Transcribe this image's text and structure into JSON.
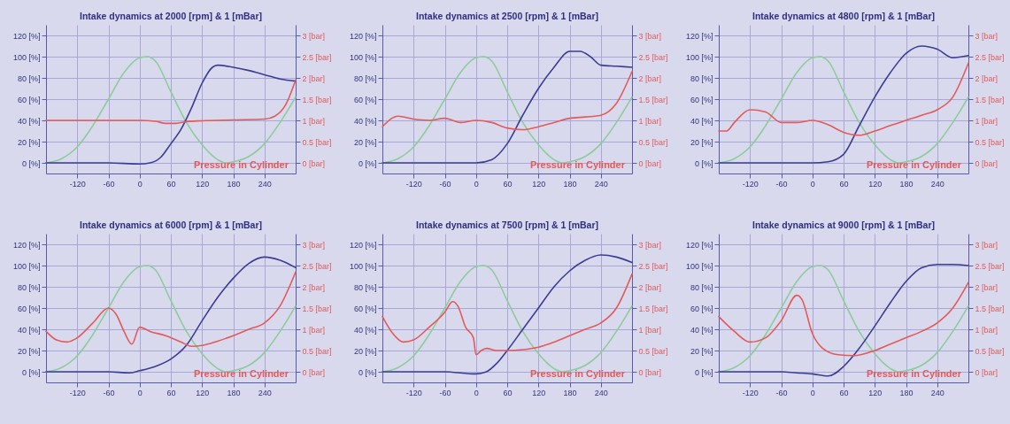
{
  "chart_data": [
    {
      "type": "line",
      "title": "Intake dynamics at 2000 [rpm] & 1 [mBar]",
      "xlim": [
        -180,
        300
      ],
      "xticks": [
        -120,
        -60,
        0,
        60,
        120,
        180,
        240
      ],
      "ylim": [
        -10,
        130
      ],
      "yticks": [
        {
          "value": 0,
          "label": "0 [%]"
        },
        {
          "value": 20,
          "label": "20 [%]"
        },
        {
          "value": 40,
          "label": "40 [%]"
        },
        {
          "value": 60,
          "label": "60 [%]"
        },
        {
          "value": 80,
          "label": "80 [%]"
        },
        {
          "value": 100,
          "label": "100 [%]"
        },
        {
          "value": 120,
          "label": "120 [%]"
        }
      ],
      "y2lim": [
        -0.25,
        3.25
      ],
      "y2ticks": [
        {
          "value": 0,
          "label": "0 [bar]"
        },
        {
          "value": 0.5,
          "label": "0.5 [bar]"
        },
        {
          "value": 1,
          "label": "1 [bar]"
        },
        {
          "value": 1.5,
          "label": "1.5 [bar]"
        },
        {
          "value": 2,
          "label": "2 [bar]"
        },
        {
          "value": 2.5,
          "label": "2.5 [bar]"
        },
        {
          "value": 3,
          "label": "3 [bar]"
        }
      ],
      "grid": true,
      "line_style": "solid",
      "series": [
        {
          "color": "#8ccc9a",
          "x": [
            -180,
            -150,
            -120,
            -90,
            -60,
            -30,
            0,
            15,
            30,
            60,
            90,
            120,
            150,
            165,
            180,
            210,
            240,
            270,
            300
          ],
          "values": [
            0,
            4,
            15,
            35,
            60,
            85,
            99,
            100,
            96,
            67,
            38,
            17,
            3,
            0,
            1,
            6,
            18,
            38,
            62
          ]
        },
        {
          "color": "#3c3c96",
          "x": [
            -180,
            -60,
            0,
            20,
            40,
            60,
            80,
            100,
            120,
            140,
            150,
            180,
            210,
            240,
            270,
            300
          ],
          "values": [
            0,
            0,
            -1,
            0,
            5,
            18,
            32,
            52,
            75,
            90,
            92,
            90,
            87,
            83,
            79,
            77
          ]
        },
        {
          "name": "Pressure in Cylinder",
          "color": "#e25a5a",
          "axis": "y2",
          "x": [
            -180,
            0,
            30,
            50,
            70,
            90,
            120,
            180,
            240,
            260,
            280,
            300
          ],
          "values": [
            1.0,
            1.0,
            0.98,
            0.93,
            0.93,
            0.97,
            0.99,
            1.01,
            1.03,
            1.1,
            1.35,
            1.95
          ]
        }
      ]
    },
    {
      "type": "line",
      "title": "Intake dynamics at 2500 [rpm] & 1 [mBar]",
      "xlim": [
        -180,
        300
      ],
      "xticks": [
        -120,
        -60,
        0,
        60,
        120,
        180,
        240
      ],
      "ylim": [
        -10,
        130
      ],
      "yticks": [
        {
          "value": 0,
          "label": "0 [%]"
        },
        {
          "value": 20,
          "label": "20 [%]"
        },
        {
          "value": 40,
          "label": "40 [%]"
        },
        {
          "value": 60,
          "label": "60 [%]"
        },
        {
          "value": 80,
          "label": "80 [%]"
        },
        {
          "value": 100,
          "label": "100 [%]"
        },
        {
          "value": 120,
          "label": "120 [%]"
        }
      ],
      "y2lim": [
        -0.25,
        3.25
      ],
      "y2ticks": [
        {
          "value": 0,
          "label": "0 [bar]"
        },
        {
          "value": 0.5,
          "label": "0.5 [bar]"
        },
        {
          "value": 1,
          "label": "1 [bar]"
        },
        {
          "value": 1.5,
          "label": "1.5 [bar]"
        },
        {
          "value": 2,
          "label": "2 [bar]"
        },
        {
          "value": 2.5,
          "label": "2.5 [bar]"
        },
        {
          "value": 3,
          "label": "3 [bar]"
        }
      ],
      "grid": true,
      "line_style": "solid",
      "series": [
        {
          "color": "#8ccc9a",
          "x": [
            -180,
            -150,
            -120,
            -90,
            -60,
            -30,
            0,
            15,
            30,
            60,
            90,
            120,
            150,
            165,
            180,
            210,
            240,
            270,
            300
          ],
          "values": [
            0,
            4,
            15,
            35,
            60,
            85,
            99,
            100,
            96,
            67,
            38,
            17,
            3,
            0,
            1,
            6,
            18,
            38,
            62
          ]
        },
        {
          "color": "#3c3c96",
          "x": [
            -180,
            -60,
            0,
            30,
            60,
            90,
            120,
            150,
            180,
            200,
            220,
            240,
            270,
            300
          ],
          "values": [
            0,
            0,
            0,
            3,
            18,
            45,
            70,
            90,
            105,
            105,
            100,
            92,
            91,
            90
          ]
        },
        {
          "name": "Pressure in Cylinder",
          "color": "#e25a5a",
          "axis": "y2",
          "x": [
            -180,
            -150,
            -120,
            -90,
            -60,
            -30,
            0,
            30,
            60,
            90,
            120,
            150,
            180,
            210,
            240,
            270,
            300
          ],
          "values": [
            0.85,
            1.1,
            1.03,
            1.0,
            1.05,
            0.95,
            1.0,
            0.95,
            0.82,
            0.78,
            0.85,
            0.95,
            1.05,
            1.08,
            1.12,
            1.4,
            2.15
          ]
        }
      ]
    },
    {
      "type": "line",
      "title": "Intake dynamics at 4800 [rpm] & 1 [mBar]",
      "xlim": [
        -180,
        300
      ],
      "xticks": [
        -120,
        -60,
        0,
        60,
        120,
        180,
        240
      ],
      "ylim": [
        -10,
        130
      ],
      "yticks": [
        {
          "value": 0,
          "label": "0 [%]"
        },
        {
          "value": 20,
          "label": "20 [%]"
        },
        {
          "value": 40,
          "label": "40 [%]"
        },
        {
          "value": 60,
          "label": "60 [%]"
        },
        {
          "value": 80,
          "label": "80 [%]"
        },
        {
          "value": 100,
          "label": "100 [%]"
        },
        {
          "value": 120,
          "label": "120 [%]"
        }
      ],
      "y2lim": [
        -0.25,
        3.25
      ],
      "y2ticks": [
        {
          "value": 0,
          "label": "0 [bar]"
        },
        {
          "value": 0.5,
          "label": "0.5 [bar]"
        },
        {
          "value": 1,
          "label": "1 [bar]"
        },
        {
          "value": 1.5,
          "label": "1.5 [bar]"
        },
        {
          "value": 2,
          "label": "2 [bar]"
        },
        {
          "value": 2.5,
          "label": "2.5 [bar]"
        },
        {
          "value": 3,
          "label": "3 [bar]"
        }
      ],
      "grid": true,
      "line_style": "solid",
      "series": [
        {
          "color": "#8ccc9a",
          "x": [
            -180,
            -150,
            -120,
            -90,
            -60,
            -30,
            0,
            15,
            30,
            60,
            90,
            120,
            150,
            165,
            180,
            210,
            240,
            270,
            300
          ],
          "values": [
            0,
            4,
            15,
            35,
            60,
            85,
            99,
            100,
            96,
            67,
            38,
            17,
            3,
            0,
            1,
            6,
            18,
            38,
            62
          ]
        },
        {
          "color": "#3c3c96",
          "x": [
            -180,
            -60,
            0,
            30,
            60,
            90,
            120,
            150,
            180,
            210,
            240,
            270,
            300
          ],
          "values": [
            0,
            0,
            0,
            1,
            8,
            35,
            62,
            85,
            103,
            110,
            107,
            99,
            101
          ]
        },
        {
          "name": "Pressure in Cylinder",
          "color": "#e25a5a",
          "axis": "y2",
          "x": [
            -180,
            -165,
            -150,
            -120,
            -90,
            -60,
            -30,
            0,
            30,
            60,
            90,
            120,
            150,
            180,
            210,
            240,
            270,
            300
          ],
          "values": [
            0.75,
            0.75,
            0.95,
            1.25,
            1.2,
            0.95,
            0.95,
            1.0,
            0.9,
            0.72,
            0.65,
            0.75,
            0.88,
            1.0,
            1.12,
            1.25,
            1.55,
            2.35
          ]
        }
      ]
    },
    {
      "type": "line",
      "title": "Intake dynamics at 6000 [rpm] & 1 [mBar]",
      "xlim": [
        -180,
        300
      ],
      "xticks": [
        -120,
        -60,
        0,
        60,
        120,
        180,
        240
      ],
      "ylim": [
        -10,
        130
      ],
      "yticks": [
        {
          "value": 0,
          "label": "0 [%]"
        },
        {
          "value": 20,
          "label": "20 [%]"
        },
        {
          "value": 40,
          "label": "40 [%]"
        },
        {
          "value": 60,
          "label": "60 [%]"
        },
        {
          "value": 80,
          "label": "80 [%]"
        },
        {
          "value": 100,
          "label": "100 [%]"
        },
        {
          "value": 120,
          "label": "120 [%]"
        }
      ],
      "y2lim": [
        -0.25,
        3.25
      ],
      "y2ticks": [
        {
          "value": 0,
          "label": "0 [bar]"
        },
        {
          "value": 0.5,
          "label": "0.5 [bar]"
        },
        {
          "value": 1,
          "label": "1 [bar]"
        },
        {
          "value": 1.5,
          "label": "1.5 [bar]"
        },
        {
          "value": 2,
          "label": "2 [bar]"
        },
        {
          "value": 2.5,
          "label": "2.5 [bar]"
        },
        {
          "value": 3,
          "label": "3 [bar]"
        }
      ],
      "grid": true,
      "line_style": "solid",
      "series": [
        {
          "color": "#8ccc9a",
          "x": [
            -180,
            -150,
            -120,
            -90,
            -60,
            -30,
            0,
            15,
            30,
            60,
            90,
            120,
            150,
            165,
            180,
            210,
            240,
            270,
            300
          ],
          "values": [
            0,
            4,
            15,
            35,
            60,
            85,
            99,
            100,
            96,
            67,
            38,
            17,
            3,
            0,
            1,
            6,
            18,
            38,
            62
          ]
        },
        {
          "color": "#3c3c96",
          "x": [
            -180,
            -60,
            -20,
            0,
            30,
            60,
            90,
            120,
            150,
            180,
            210,
            240,
            270,
            300
          ],
          "values": [
            0,
            0,
            -1,
            1,
            5,
            12,
            25,
            48,
            70,
            88,
            102,
            108,
            105,
            98
          ]
        },
        {
          "name": "Pressure in Cylinder",
          "color": "#e25a5a",
          "axis": "y2",
          "x": [
            -180,
            -160,
            -140,
            -120,
            -90,
            -60,
            -45,
            -30,
            -15,
            0,
            20,
            50,
            80,
            100,
            120,
            150,
            180,
            210,
            240,
            270,
            300
          ],
          "values": [
            0.95,
            0.75,
            0.7,
            0.8,
            1.15,
            1.5,
            1.35,
            0.95,
            0.65,
            1.05,
            0.95,
            0.85,
            0.7,
            0.6,
            0.62,
            0.72,
            0.85,
            1.0,
            1.15,
            1.55,
            2.35
          ]
        }
      ]
    },
    {
      "type": "line",
      "title": "Intake dynamics at 7500 [rpm] & 1 [mBar]",
      "xlim": [
        -180,
        300
      ],
      "xticks": [
        -120,
        -60,
        0,
        60,
        120,
        180,
        240
      ],
      "ylim": [
        -10,
        130
      ],
      "yticks": [
        {
          "value": 0,
          "label": "0 [%]"
        },
        {
          "value": 20,
          "label": "20 [%]"
        },
        {
          "value": 40,
          "label": "40 [%]"
        },
        {
          "value": 60,
          "label": "60 [%]"
        },
        {
          "value": 80,
          "label": "80 [%]"
        },
        {
          "value": 100,
          "label": "100 [%]"
        },
        {
          "value": 120,
          "label": "120 [%]"
        }
      ],
      "y2lim": [
        -0.25,
        3.25
      ],
      "y2ticks": [
        {
          "value": 0,
          "label": "0 [bar]"
        },
        {
          "value": 0.5,
          "label": "0.5 [bar]"
        },
        {
          "value": 1,
          "label": "1 [bar]"
        },
        {
          "value": 1.5,
          "label": "1.5 [bar]"
        },
        {
          "value": 2,
          "label": "2 [bar]"
        },
        {
          "value": 2.5,
          "label": "2.5 [bar]"
        },
        {
          "value": 3,
          "label": "3 [bar]"
        }
      ],
      "grid": true,
      "line_style": "solid",
      "series": [
        {
          "color": "#8ccc9a",
          "x": [
            -180,
            -150,
            -120,
            -90,
            -60,
            -30,
            0,
            15,
            30,
            60,
            90,
            120,
            150,
            165,
            180,
            210,
            240,
            270,
            300
          ],
          "values": [
            0,
            4,
            15,
            35,
            60,
            85,
            99,
            100,
            96,
            67,
            38,
            17,
            3,
            0,
            1,
            6,
            18,
            38,
            62
          ]
        },
        {
          "color": "#3c3c96",
          "x": [
            -180,
            -60,
            0,
            20,
            40,
            60,
            90,
            120,
            150,
            180,
            210,
            240,
            270,
            300
          ],
          "values": [
            0,
            0,
            -2,
            0,
            8,
            20,
            40,
            60,
            80,
            95,
            105,
            110,
            108,
            103
          ]
        },
        {
          "name": "Pressure in Cylinder",
          "color": "#e25a5a",
          "axis": "y2",
          "x": [
            -180,
            -160,
            -140,
            -120,
            -90,
            -60,
            -45,
            -35,
            -20,
            -5,
            0,
            10,
            20,
            40,
            60,
            90,
            120,
            150,
            180,
            210,
            240,
            270,
            300
          ],
          "values": [
            1.3,
            0.9,
            0.7,
            0.75,
            1.05,
            1.4,
            1.65,
            1.55,
            1.05,
            0.8,
            0.4,
            0.5,
            0.55,
            0.5,
            0.5,
            0.52,
            0.58,
            0.7,
            0.85,
            1.0,
            1.15,
            1.5,
            2.3
          ]
        }
      ]
    },
    {
      "type": "line",
      "title": "Intake dynamics at 9000 [rpm] & 1 [mBar]",
      "xlim": [
        -180,
        300
      ],
      "xticks": [
        -120,
        -60,
        0,
        60,
        120,
        180,
        240
      ],
      "ylim": [
        -10,
        130
      ],
      "yticks": [
        {
          "value": 0,
          "label": "0 [%]"
        },
        {
          "value": 20,
          "label": "20 [%]"
        },
        {
          "value": 40,
          "label": "40 [%]"
        },
        {
          "value": 60,
          "label": "60 [%]"
        },
        {
          "value": 80,
          "label": "80 [%]"
        },
        {
          "value": 100,
          "label": "100 [%]"
        },
        {
          "value": 120,
          "label": "120 [%]"
        }
      ],
      "y2lim": [
        -0.25,
        3.25
      ],
      "y2ticks": [
        {
          "value": 0,
          "label": "0 [bar]"
        },
        {
          "value": 0.5,
          "label": "0.5 [bar]"
        },
        {
          "value": 1,
          "label": "1 [bar]"
        },
        {
          "value": 1.5,
          "label": "1.5 [bar]"
        },
        {
          "value": 2,
          "label": "2 [bar]"
        },
        {
          "value": 2.5,
          "label": "2.5 [bar]"
        },
        {
          "value": 3,
          "label": "3 [bar]"
        }
      ],
      "grid": true,
      "line_style": "solid",
      "series": [
        {
          "color": "#8ccc9a",
          "x": [
            -180,
            -150,
            -120,
            -90,
            -60,
            -30,
            0,
            15,
            30,
            60,
            90,
            120,
            150,
            165,
            180,
            210,
            240,
            270,
            300
          ],
          "values": [
            0,
            4,
            15,
            35,
            60,
            85,
            99,
            100,
            96,
            67,
            38,
            17,
            3,
            0,
            1,
            6,
            18,
            38,
            62
          ]
        },
        {
          "color": "#3c3c96",
          "x": [
            -180,
            -60,
            -30,
            0,
            30,
            60,
            90,
            120,
            150,
            180,
            210,
            240,
            270,
            300
          ],
          "values": [
            0,
            0,
            -1,
            -2,
            -4,
            5,
            22,
            43,
            65,
            85,
            98,
            101,
            101,
            100
          ]
        },
        {
          "name": "Pressure in Cylinder",
          "color": "#e25a5a",
          "axis": "y2",
          "x": [
            -180,
            -150,
            -120,
            -90,
            -60,
            -30,
            -20,
            0,
            20,
            50,
            80,
            120,
            150,
            180,
            210,
            240,
            270,
            300
          ],
          "values": [
            1.3,
            0.95,
            0.7,
            0.8,
            1.2,
            1.8,
            1.7,
            0.9,
            0.55,
            0.4,
            0.38,
            0.5,
            0.65,
            0.8,
            0.95,
            1.15,
            1.5,
            2.1
          ]
        }
      ]
    }
  ]
}
